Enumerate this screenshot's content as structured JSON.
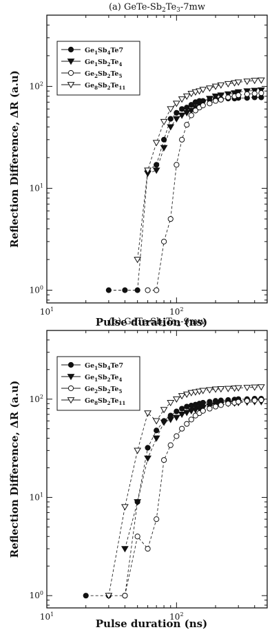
{
  "chart_data": [
    {
      "type": "scatter",
      "title": "(a) GeTe-Sb2Te3-7mw",
      "title_parts": [
        "(a) GeTe-Sb",
        "2",
        "Te",
        "3",
        "-7mw"
      ],
      "xlabel": "Pulse duration (ns)",
      "ylabel": "Reflection Difference, ΔR  (a.u)",
      "xscale": "log",
      "yscale": "log",
      "xlim": [
        10,
        500
      ],
      "ylim": [
        0.75,
        500
      ],
      "xticks": [
        {
          "value": 10,
          "base": "10",
          "exp": "1"
        },
        {
          "value": 100,
          "base": "10",
          "exp": "2"
        }
      ],
      "yticks": [
        {
          "value": 1,
          "base": "10",
          "exp": "0"
        },
        {
          "value": 10,
          "base": "10",
          "exp": "1"
        },
        {
          "value": 100,
          "base": "10",
          "exp": "2"
        }
      ],
      "grid": false,
      "legend_position": "top-left",
      "series": [
        {
          "name": "Ge1Sb4Te7",
          "label_parts": [
            "Ge",
            "1",
            "Sb",
            "4",
            "Te7",
            ""
          ],
          "marker": "circle-filled",
          "points": [
            [
              30,
              1
            ],
            [
              40,
              1
            ],
            [
              50,
              1
            ],
            [
              60,
              15
            ],
            [
              70,
              17
            ],
            [
              80,
              30
            ],
            [
              90,
              48
            ],
            [
              100,
              55
            ],
            [
              110,
              60
            ],
            [
              120,
              62
            ],
            [
              130,
              66
            ],
            [
              140,
              70
            ],
            [
              150,
              72
            ],
            [
              160,
              72
            ],
            [
              180,
              74
            ],
            [
              200,
              75
            ],
            [
              220,
              75
            ],
            [
              250,
              76
            ],
            [
              280,
              76
            ],
            [
              300,
              77
            ],
            [
              350,
              77
            ],
            [
              400,
              78
            ],
            [
              450,
              78
            ]
          ]
        },
        {
          "name": "Ge1Sb2Te4",
          "label_parts": [
            "Ge",
            "1",
            "Sb",
            "2",
            "Te",
            "4"
          ],
          "marker": "triangle-down-filled",
          "points": [
            [
              60,
              14
            ],
            [
              70,
              15
            ],
            [
              80,
              25
            ],
            [
              90,
              40
            ],
            [
              100,
              48
            ],
            [
              110,
              52
            ],
            [
              120,
              55
            ],
            [
              130,
              58
            ],
            [
              140,
              62
            ],
            [
              150,
              66
            ],
            [
              160,
              70
            ],
            [
              180,
              76
            ],
            [
              200,
              80
            ],
            [
              220,
              82
            ],
            [
              250,
              84
            ],
            [
              280,
              86
            ],
            [
              300,
              88
            ],
            [
              350,
              90
            ],
            [
              400,
              91
            ],
            [
              450,
              92
            ]
          ]
        },
        {
          "name": "Ge2Sb2Te5",
          "label_parts": [
            "Ge",
            "2",
            "Sb",
            "2",
            "Te",
            "5"
          ],
          "marker": "circle-open",
          "points": [
            [
              60,
              1
            ],
            [
              70,
              1
            ],
            [
              80,
              3
            ],
            [
              90,
              5
            ],
            [
              100,
              17
            ],
            [
              110,
              30
            ],
            [
              120,
              42
            ],
            [
              130,
              52
            ],
            [
              140,
              58
            ],
            [
              150,
              62
            ],
            [
              160,
              65
            ],
            [
              180,
              68
            ],
            [
              200,
              72
            ],
            [
              220,
              74
            ],
            [
              250,
              78
            ],
            [
              280,
              80
            ],
            [
              300,
              82
            ],
            [
              350,
              84
            ],
            [
              400,
              85
            ],
            [
              450,
              86
            ]
          ]
        },
        {
          "name": "Ge8Sb2Te11",
          "label_parts": [
            "Ge",
            "8",
            "Sb",
            "2",
            "Te",
            "11"
          ],
          "marker": "triangle-down-open",
          "points": [
            [
              50,
              2
            ],
            [
              60,
              15
            ],
            [
              70,
              28
            ],
            [
              80,
              45
            ],
            [
              90,
              60
            ],
            [
              100,
              68
            ],
            [
              110,
              75
            ],
            [
              120,
              80
            ],
            [
              130,
              85
            ],
            [
              140,
              88
            ],
            [
              150,
              90
            ],
            [
              160,
              93
            ],
            [
              180,
              96
            ],
            [
              200,
              100
            ],
            [
              220,
              103
            ],
            [
              250,
              106
            ],
            [
              280,
              108
            ],
            [
              300,
              110
            ],
            [
              350,
              112
            ],
            [
              400,
              114
            ],
            [
              450,
              115
            ]
          ]
        }
      ]
    },
    {
      "type": "scatter",
      "title": "(b) GeTe-Sb2Te3-9mw",
      "title_parts": [
        "(b) GeTe-Sb",
        "2",
        "Te",
        "3",
        "-9mw"
      ],
      "xlabel": "Pulse duration (ns)",
      "ylabel": "Reflection Difference, ΔR  (a.u)",
      "xscale": "log",
      "yscale": "log",
      "xlim": [
        10,
        500
      ],
      "ylim": [
        0.75,
        500
      ],
      "xticks": [
        {
          "value": 10,
          "base": "10",
          "exp": "1"
        },
        {
          "value": 100,
          "base": "10",
          "exp": "2"
        }
      ],
      "yticks": [
        {
          "value": 1,
          "base": "10",
          "exp": "0"
        },
        {
          "value": 10,
          "base": "10",
          "exp": "1"
        },
        {
          "value": 100,
          "base": "10",
          "exp": "2"
        }
      ],
      "grid": false,
      "legend_position": "top-left",
      "series": [
        {
          "name": "Ge1Sb4Te7",
          "label_parts": [
            "Ge",
            "1",
            "Sb",
            "4",
            "Te7",
            ""
          ],
          "marker": "circle-filled",
          "points": [
            [
              20,
              1
            ],
            [
              30,
              1
            ],
            [
              40,
              1
            ],
            [
              50,
              9
            ],
            [
              60,
              32
            ],
            [
              70,
              48
            ],
            [
              80,
              60
            ],
            [
              90,
              68
            ],
            [
              100,
              75
            ],
            [
              110,
              80
            ],
            [
              120,
              84
            ],
            [
              130,
              86
            ],
            [
              140,
              88
            ],
            [
              150,
              90
            ],
            [
              160,
              92
            ],
            [
              180,
              94
            ],
            [
              200,
              96
            ],
            [
              220,
              97
            ],
            [
              250,
              98
            ],
            [
              280,
              99
            ],
            [
              300,
              100
            ],
            [
              350,
              100
            ],
            [
              400,
              101
            ],
            [
              450,
              101
            ]
          ]
        },
        {
          "name": "Ge1Sb2Te4",
          "label_parts": [
            "Ge",
            "1",
            "Sb",
            "2",
            "Te",
            "4"
          ],
          "marker": "triangle-down-filled",
          "points": [
            [
              40,
              3
            ],
            [
              50,
              9
            ],
            [
              60,
              25
            ],
            [
              70,
              40
            ],
            [
              80,
              58
            ],
            [
              90,
              62
            ],
            [
              100,
              65
            ],
            [
              110,
              70
            ],
            [
              120,
              73
            ],
            [
              130,
              76
            ],
            [
              140,
              78
            ],
            [
              150,
              80
            ],
            [
              160,
              82
            ],
            [
              180,
              85
            ],
            [
              200,
              87
            ],
            [
              220,
              89
            ],
            [
              250,
              90
            ],
            [
              280,
              91
            ],
            [
              300,
              92
            ],
            [
              350,
              93
            ],
            [
              400,
              94
            ],
            [
              450,
              94
            ]
          ]
        },
        {
          "name": "Ge2Sb2Te5",
          "label_parts": [
            "Ge",
            "2",
            "Sb",
            "2",
            "Te",
            "5"
          ],
          "marker": "circle-open",
          "points": [
            [
              40,
              1
            ],
            [
              50,
              4
            ],
            [
              60,
              3
            ],
            [
              70,
              6
            ],
            [
              80,
              24
            ],
            [
              90,
              34
            ],
            [
              100,
              42
            ],
            [
              110,
              50
            ],
            [
              120,
              56
            ],
            [
              130,
              62
            ],
            [
              140,
              68
            ],
            [
              150,
              72
            ],
            [
              160,
              76
            ],
            [
              180,
              80
            ],
            [
              200,
              84
            ],
            [
              220,
              87
            ],
            [
              250,
              90
            ],
            [
              280,
              92
            ],
            [
              300,
              94
            ],
            [
              350,
              96
            ],
            [
              400,
              97
            ],
            [
              450,
              98
            ]
          ]
        },
        {
          "name": "Ge8Sb2Te11",
          "label_parts": [
            "Ge",
            "8",
            "Sb",
            "2",
            "Te",
            "11"
          ],
          "marker": "triangle-down-open",
          "points": [
            [
              30,
              1
            ],
            [
              40,
              8
            ],
            [
              50,
              30
            ],
            [
              60,
              72
            ],
            [
              70,
              60
            ],
            [
              80,
              78
            ],
            [
              90,
              92
            ],
            [
              100,
              100
            ],
            [
              110,
              108
            ],
            [
              120,
              112
            ],
            [
              130,
              116
            ],
            [
              140,
              118
            ],
            [
              150,
              120
            ],
            [
              160,
              122
            ],
            [
              180,
              124
            ],
            [
              200,
              126
            ],
            [
              220,
              127
            ],
            [
              250,
              128
            ],
            [
              280,
              129
            ],
            [
              300,
              130
            ],
            [
              350,
              131
            ],
            [
              400,
              132
            ],
            [
              450,
              133
            ]
          ]
        }
      ]
    }
  ]
}
